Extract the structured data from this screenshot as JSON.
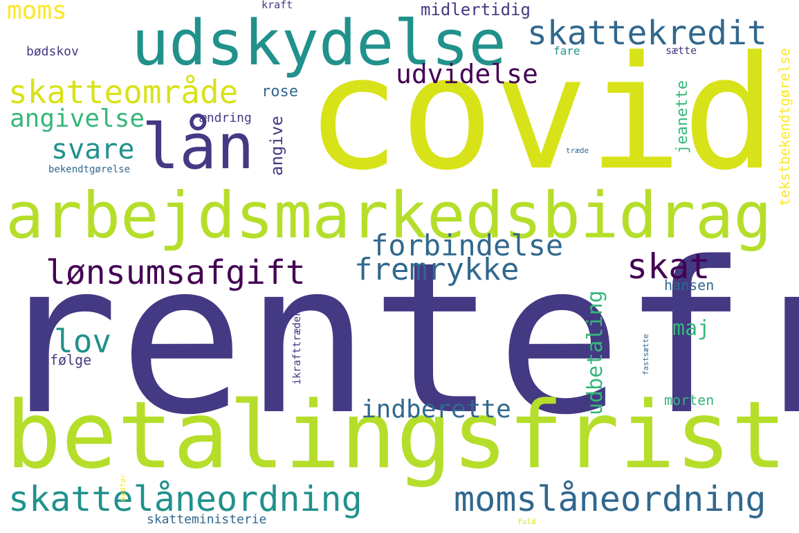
{
  "words": {
    "rentefri": "rentefri",
    "covid": "covid",
    "betalingsfrist": "betalingsfrist",
    "arbejdsmarkedsbidrag": "arbejdsmarkedsbidrag",
    "udskydelse": "udskydelse",
    "lan": "lån",
    "skattelaaneordning": "skattelåneordning",
    "momslaaneordning": "momslåneordning",
    "skattekredit": "skattekredit",
    "lonsumsafgift": "lønsumsafgift",
    "skatteomraade": "skatteområde",
    "forbindelse": "forbindelse",
    "fremrykke": "fremrykke",
    "skat": "skat",
    "udvidelse": "udvidelse",
    "svare": "svare",
    "angivelse": "angivelse",
    "lov": "lov",
    "indberette": "indberette",
    "udbetaling": "udbetaling",
    "moms": "moms",
    "midlertidig": "midlertidig",
    "rose": "rose",
    "angive": "angive",
    "jeanette": "jeanette",
    "maj": "maj",
    "hansen": "hansen",
    "morten": "morten",
    "folge": "følge",
    "aendring": "ændring",
    "bodskov": "bødskov",
    "kraft": "kraft",
    "fare": "fare",
    "saette": "sætte",
    "bekendtgorelse": "bekendtgørelse",
    "tekstbekendtgorelse": "tekstbekendtgørelse",
    "traede": "træde",
    "ikrafttraeden": "ikrafttræden",
    "fastsaette": "fastsætte",
    "skatteministerie": "skatteministerie",
    "medfor": "medfør",
    "fuld": "fuld"
  },
  "colors": {
    "dark_purple": "#440154",
    "indigo": "#443983",
    "blue": "#31688e",
    "teal": "#21918c",
    "green": "#35b779",
    "light_green": "#90d743",
    "lime": "#b5de2b",
    "yellow_green": "#d8e219",
    "yellow": "#fde725"
  }
}
